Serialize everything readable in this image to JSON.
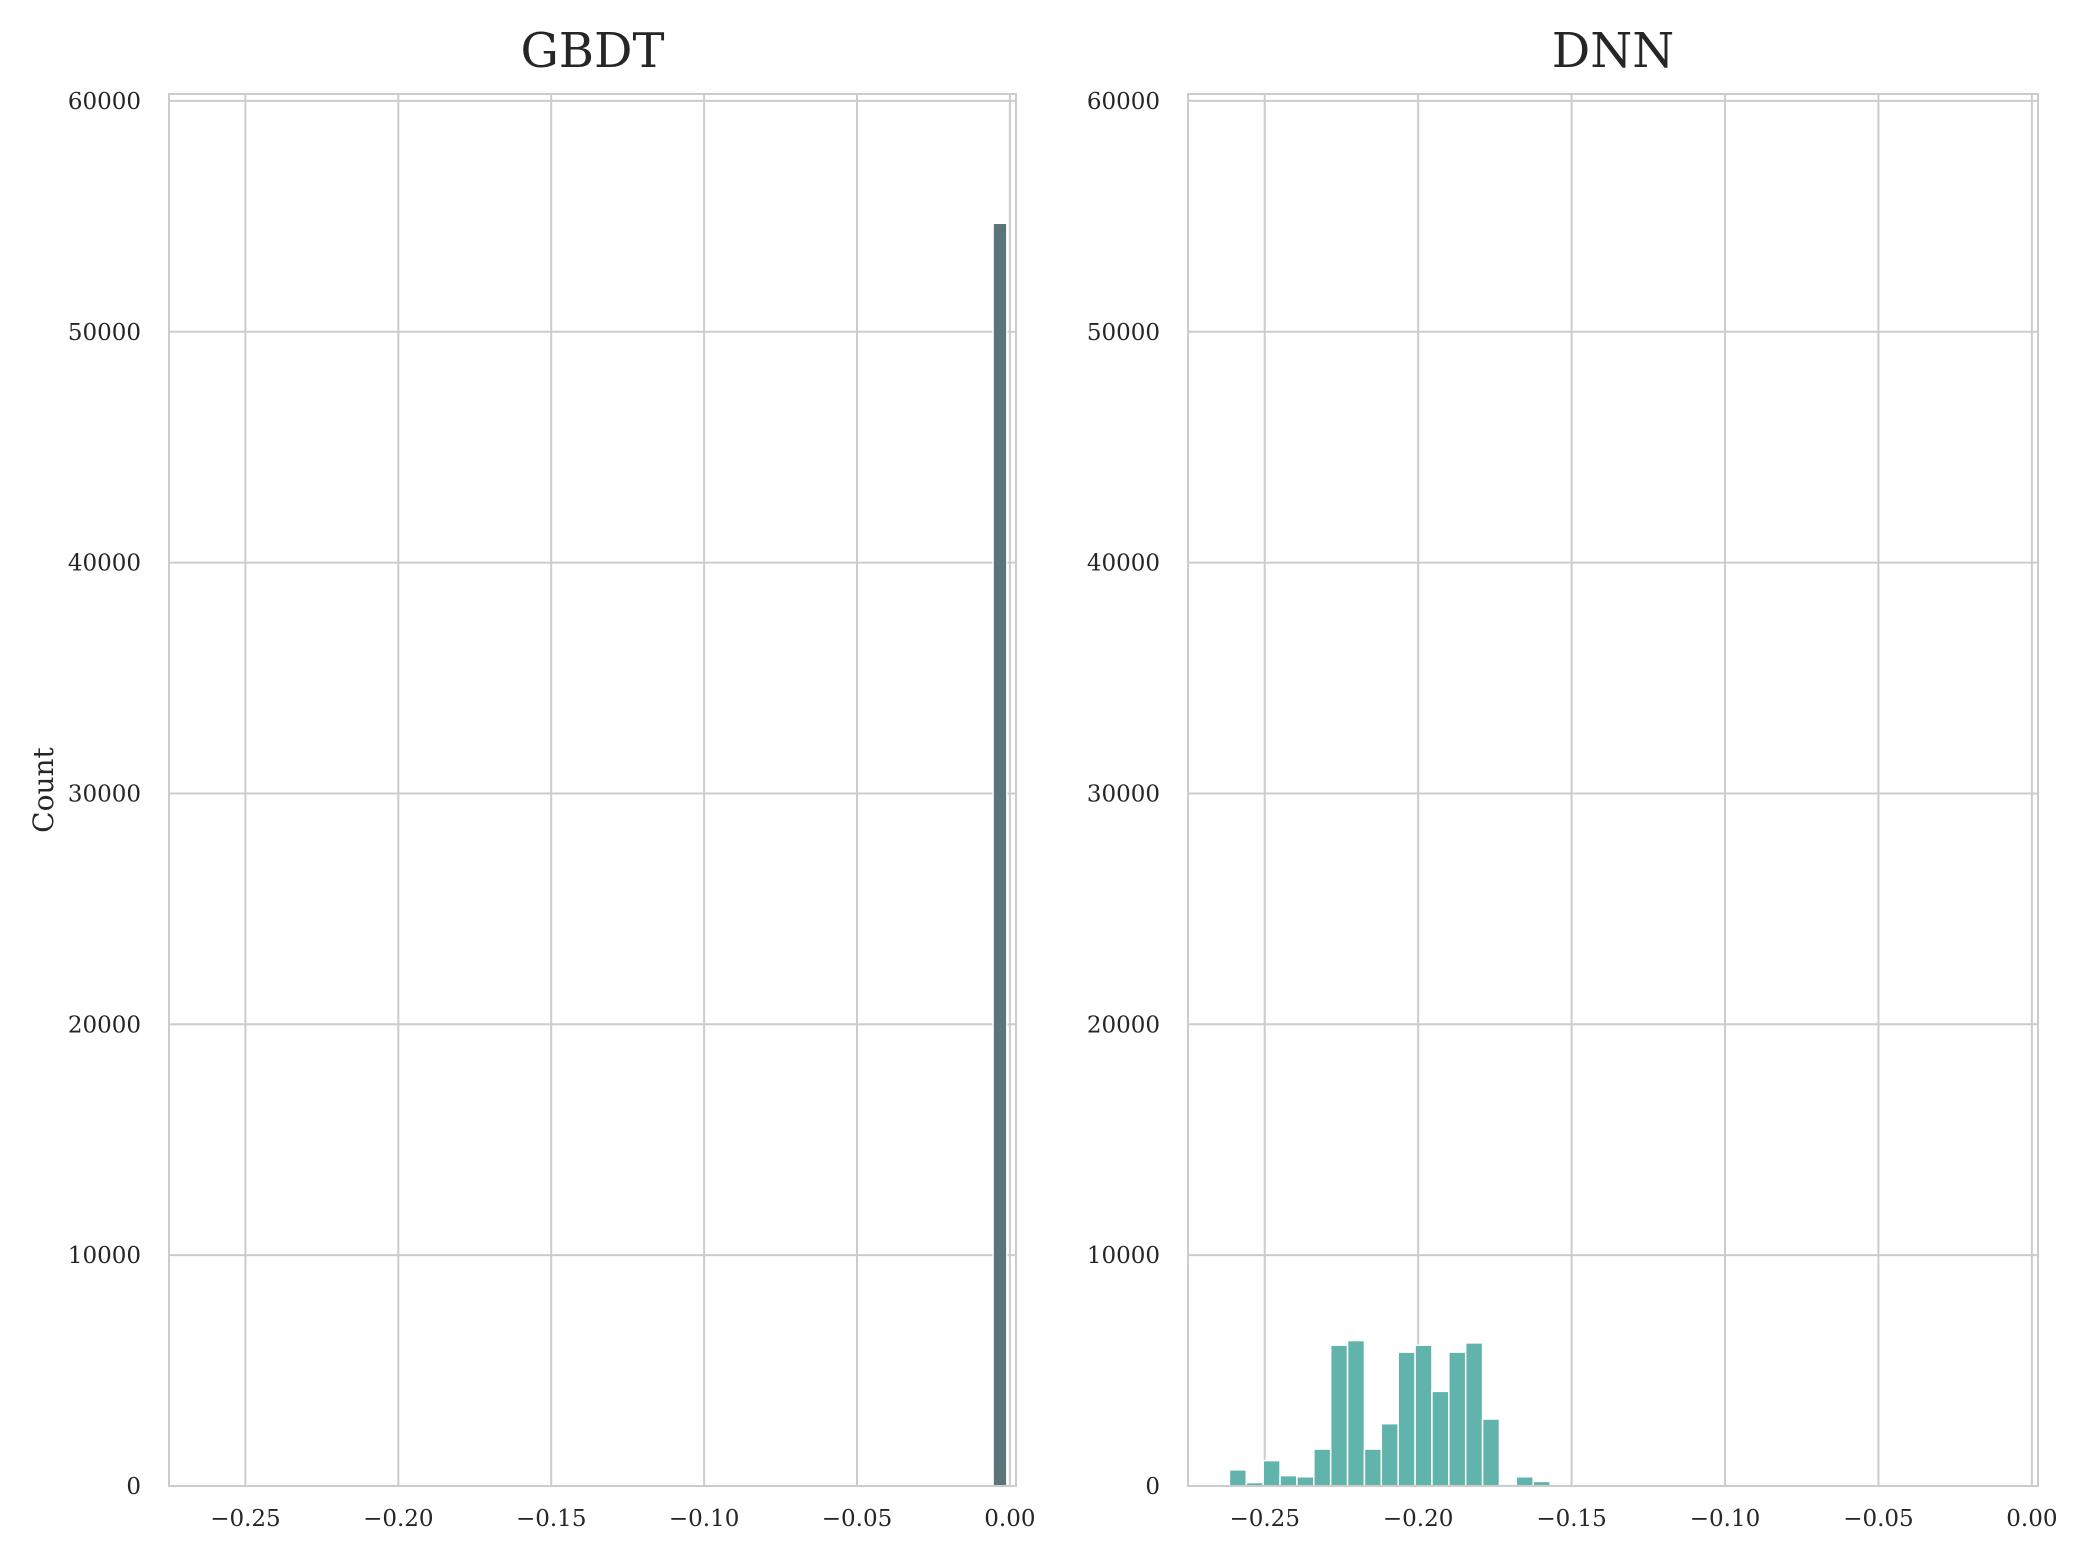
{
  "chart_data": [
    {
      "type": "bar",
      "title": "GBDT",
      "xlabel": "",
      "ylabel": "Count",
      "xlim": [
        -0.275,
        0.002
      ],
      "ylim": [
        0,
        60300
      ],
      "xticks": [
        -0.25,
        -0.2,
        -0.15,
        -0.1,
        -0.05,
        0.0
      ],
      "xtick_labels": [
        "−0.25",
        "−0.20",
        "−0.15",
        "−0.10",
        "−0.05",
        "0.00"
      ],
      "yticks": [
        0,
        10000,
        20000,
        30000,
        40000,
        50000,
        60000
      ],
      "ytick_labels": [
        "0",
        "10000",
        "20000",
        "30000",
        "40000",
        "50000",
        "60000"
      ],
      "grid": true,
      "color": "#5a7479",
      "bins": [
        {
          "x0": -0.0055,
          "x1": -0.001,
          "count": 54700
        }
      ]
    },
    {
      "type": "bar",
      "title": "DNN",
      "xlabel": "",
      "ylabel": "",
      "xlim": [
        -0.275,
        0.002
      ],
      "ylim": [
        0,
        60300
      ],
      "xticks": [
        -0.25,
        -0.2,
        -0.15,
        -0.1,
        -0.05,
        0.0
      ],
      "xtick_labels": [
        "−0.25",
        "−0.20",
        "−0.15",
        "−0.10",
        "−0.05",
        "0.00"
      ],
      "yticks": [
        0,
        10000,
        20000,
        30000,
        40000,
        50000,
        60000
      ],
      "ytick_labels": [
        "0",
        "10000",
        "20000",
        "30000",
        "40000",
        "50000",
        "60000"
      ],
      "grid": true,
      "color": "#61b4ab",
      "bins": [
        {
          "x0": -0.2615,
          "x1": -0.256,
          "count": 700
        },
        {
          "x0": -0.256,
          "x1": -0.2505,
          "count": 150
        },
        {
          "x0": -0.2505,
          "x1": -0.245,
          "count": 1100
        },
        {
          "x0": -0.245,
          "x1": -0.2395,
          "count": 450
        },
        {
          "x0": -0.2395,
          "x1": -0.234,
          "count": 400
        },
        {
          "x0": -0.234,
          "x1": -0.2285,
          "count": 1600
        },
        {
          "x0": -0.2285,
          "x1": -0.223,
          "count": 6100
        },
        {
          "x0": -0.223,
          "x1": -0.2175,
          "count": 6300
        },
        {
          "x0": -0.2175,
          "x1": -0.212,
          "count": 1600
        },
        {
          "x0": -0.212,
          "x1": -0.2065,
          "count": 2700
        },
        {
          "x0": -0.2065,
          "x1": -0.201,
          "count": 5800
        },
        {
          "x0": -0.201,
          "x1": -0.1955,
          "count": 6100
        },
        {
          "x0": -0.1955,
          "x1": -0.19,
          "count": 4100
        },
        {
          "x0": -0.19,
          "x1": -0.1845,
          "count": 5800
        },
        {
          "x0": -0.1845,
          "x1": -0.179,
          "count": 6200
        },
        {
          "x0": -0.179,
          "x1": -0.1735,
          "count": 2900
        },
        {
          "x0": -0.1735,
          "x1": -0.168,
          "count": 80
        },
        {
          "x0": -0.168,
          "x1": -0.1625,
          "count": 400
        },
        {
          "x0": -0.1625,
          "x1": -0.157,
          "count": 200
        }
      ]
    }
  ]
}
